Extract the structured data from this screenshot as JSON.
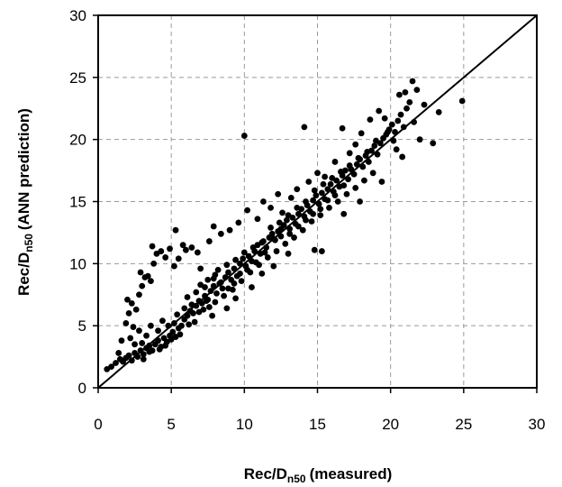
{
  "chart_data": {
    "type": "scatter",
    "title": "",
    "xlabel_main": "Rec/D",
    "xlabel_sub": "n50",
    "xlabel_suffix": "(measured)",
    "ylabel_main": "Rec/D",
    "ylabel_sub": "n50",
    "ylabel_suffix": "(ANN prediction)",
    "xlim": [
      0,
      30
    ],
    "ylim": [
      0,
      30
    ],
    "x_ticks": [
      "0",
      "5",
      "10",
      "15",
      "20",
      "25",
      "30"
    ],
    "y_ticks": [
      "0",
      "5",
      "10",
      "15",
      "20",
      "25",
      "30"
    ],
    "grid": true,
    "grid_style": "dashed",
    "reference_line": {
      "from": [
        0,
        0
      ],
      "to": [
        30,
        30
      ]
    },
    "colors": {
      "points": "#000000",
      "grid": "#9a9a9a",
      "line": "#000000"
    },
    "points": [
      [
        0.6,
        1.5
      ],
      [
        0.9,
        1.7
      ],
      [
        1.2,
        2.0
      ],
      [
        1.5,
        2.3
      ],
      [
        1.4,
        2.8
      ],
      [
        1.7,
        2.1
      ],
      [
        1.9,
        2.4
      ],
      [
        2.1,
        2.6
      ],
      [
        2.3,
        2.2
      ],
      [
        2.5,
        2.8
      ],
      [
        2.7,
        2.5
      ],
      [
        2.9,
        3.0
      ],
      [
        3.1,
        2.7
      ],
      [
        3.3,
        3.2
      ],
      [
        3.5,
        3.4
      ],
      [
        3.0,
        3.6
      ],
      [
        3.7,
        3.0
      ],
      [
        3.9,
        3.5
      ],
      [
        4.1,
        3.8
      ],
      [
        4.3,
        3.3
      ],
      [
        4.5,
        4.0
      ],
      [
        4.7,
        3.7
      ],
      [
        4.9,
        4.2
      ],
      [
        5.1,
        4.5
      ],
      [
        5.3,
        4.1
      ],
      [
        5.5,
        4.8
      ],
      [
        5.2,
        5.2
      ],
      [
        5.7,
        5.0
      ],
      [
        5.9,
        5.5
      ],
      [
        6.1,
        5.8
      ],
      [
        6.3,
        6.2
      ],
      [
        6.5,
        6.0
      ],
      [
        6.7,
        6.6
      ],
      [
        6.9,
        7.0
      ],
      [
        7.1,
        6.8
      ],
      [
        7.3,
        7.4
      ],
      [
        7.5,
        7.1
      ],
      [
        7.7,
        7.8
      ],
      [
        7.9,
        8.2
      ],
      [
        8.1,
        7.6
      ],
      [
        8.3,
        8.4
      ],
      [
        8.5,
        8.0
      ],
      [
        8.7,
        8.9
      ],
      [
        8.9,
        9.3
      ],
      [
        9.1,
        8.7
      ],
      [
        9.3,
        9.6
      ],
      [
        9.5,
        9.0
      ],
      [
        9.7,
        10.0
      ],
      [
        9.9,
        10.4
      ],
      [
        10.1,
        9.8
      ],
      [
        10.3,
        10.6
      ],
      [
        10.5,
        10.2
      ],
      [
        10.7,
        11.0
      ],
      [
        10.9,
        11.5
      ],
      [
        11.1,
        10.8
      ],
      [
        11.3,
        11.8
      ],
      [
        11.5,
        11.3
      ],
      [
        11.7,
        12.1
      ],
      [
        11.9,
        12.4
      ],
      [
        12.1,
        11.9
      ],
      [
        12.3,
        12.6
      ],
      [
        12.5,
        12.2
      ],
      [
        12.7,
        13.1
      ],
      [
        12.9,
        13.5
      ],
      [
        13.1,
        12.8
      ],
      [
        13.3,
        13.7
      ],
      [
        13.5,
        13.2
      ],
      [
        13.7,
        14.0
      ],
      [
        13.9,
        14.4
      ],
      [
        14.1,
        13.8
      ],
      [
        14.3,
        14.7
      ],
      [
        14.5,
        14.2
      ],
      [
        14.7,
        15.1
      ],
      [
        14.9,
        15.5
      ],
      [
        15.1,
        14.8
      ],
      [
        15.3,
        15.7
      ],
      [
        15.5,
        15.2
      ],
      [
        15.7,
        16.0
      ],
      [
        15.9,
        16.4
      ],
      [
        16.1,
        15.8
      ],
      [
        16.3,
        16.7
      ],
      [
        16.5,
        16.2
      ],
      [
        16.7,
        17.1
      ],
      [
        16.9,
        17.5
      ],
      [
        17.1,
        16.8
      ],
      [
        17.3,
        17.6
      ],
      [
        17.5,
        17.2
      ],
      [
        17.7,
        18.0
      ],
      [
        17.9,
        18.4
      ],
      [
        18.1,
        17.8
      ],
      [
        18.3,
        18.7
      ],
      [
        18.5,
        18.2
      ],
      [
        18.7,
        19.1
      ],
      [
        18.9,
        19.5
      ],
      [
        19.1,
        18.8
      ],
      [
        19.3,
        19.7
      ],
      [
        19.5,
        20.1
      ],
      [
        19.7,
        20.4
      ],
      [
        19.9,
        20.8
      ],
      [
        20.1,
        21.2
      ],
      [
        20.3,
        20.6
      ],
      [
        20.5,
        21.5
      ],
      [
        20.7,
        22.0
      ],
      [
        20.9,
        21.0
      ],
      [
        21.1,
        22.5
      ],
      [
        21.3,
        23.0
      ],
      [
        21.5,
        24.7
      ],
      [
        21.0,
        23.8
      ],
      [
        20.6,
        23.6
      ],
      [
        21.8,
        24.0
      ],
      [
        22.3,
        22.8
      ],
      [
        22.0,
        20.0
      ],
      [
        21.6,
        21.4
      ],
      [
        20.4,
        19.2
      ],
      [
        20.8,
        18.6
      ],
      [
        22.9,
        19.7
      ],
      [
        23.3,
        22.2
      ],
      [
        24.9,
        23.1
      ],
      [
        20.2,
        19.9
      ],
      [
        19.6,
        21.7
      ],
      [
        1.9,
        5.2
      ],
      [
        2.1,
        6.0
      ],
      [
        2.3,
        6.8
      ],
      [
        2.0,
        7.1
      ],
      [
        2.6,
        6.3
      ],
      [
        2.8,
        7.5
      ],
      [
        3.0,
        8.2
      ],
      [
        3.2,
        8.9
      ],
      [
        2.9,
        9.3
      ],
      [
        3.4,
        9.0
      ],
      [
        3.6,
        8.6
      ],
      [
        3.8,
        10.0
      ],
      [
        4.0,
        10.8
      ],
      [
        4.3,
        11.0
      ],
      [
        3.7,
        11.4
      ],
      [
        4.6,
        10.5
      ],
      [
        4.9,
        11.2
      ],
      [
        5.2,
        9.8
      ],
      [
        5.5,
        10.4
      ],
      [
        5.3,
        12.7
      ],
      [
        5.8,
        11.5
      ],
      [
        6.0,
        11.1
      ],
      [
        6.4,
        11.3
      ],
      [
        6.8,
        10.9
      ],
      [
        7.0,
        9.6
      ],
      [
        7.6,
        11.8
      ],
      [
        7.9,
        13.0
      ],
      [
        8.4,
        12.4
      ],
      [
        9.0,
        12.7
      ],
      [
        9.6,
        13.3
      ],
      [
        10.0,
        20.3
      ],
      [
        10.2,
        14.3
      ],
      [
        10.9,
        13.6
      ],
      [
        11.3,
        15.0
      ],
      [
        11.8,
        14.5
      ],
      [
        12.3,
        15.6
      ],
      [
        12.6,
        14.1
      ],
      [
        13.2,
        15.3
      ],
      [
        13.6,
        16.0
      ],
      [
        14.1,
        21.0
      ],
      [
        14.4,
        16.6
      ],
      [
        15.0,
        17.3
      ],
      [
        15.5,
        17.0
      ],
      [
        16.2,
        18.2
      ],
      [
        16.7,
        20.9
      ],
      [
        17.2,
        18.9
      ],
      [
        17.6,
        19.6
      ],
      [
        18.0,
        20.5
      ],
      [
        18.6,
        21.6
      ],
      [
        19.2,
        22.3
      ],
      [
        2.2,
        4.0
      ],
      [
        2.5,
        3.5
      ],
      [
        2.8,
        4.6
      ],
      [
        3.3,
        4.2
      ],
      [
        3.6,
        5.0
      ],
      [
        4.1,
        4.6
      ],
      [
        4.4,
        5.4
      ],
      [
        4.8,
        5.0
      ],
      [
        1.6,
        3.8
      ],
      [
        2.4,
        4.9
      ],
      [
        3.1,
        2.3
      ],
      [
        3.5,
        2.9
      ],
      [
        4.2,
        3.1
      ],
      [
        4.6,
        3.4
      ],
      [
        5.0,
        3.9
      ],
      [
        5.6,
        4.3
      ],
      [
        6.2,
        5.1
      ],
      [
        6.6,
        5.3
      ],
      [
        7.2,
        6.3
      ],
      [
        7.6,
        6.5
      ],
      [
        8.0,
        6.9
      ],
      [
        8.6,
        7.4
      ],
      [
        9.2,
        7.9
      ],
      [
        9.8,
        8.6
      ],
      [
        10.4,
        9.3
      ],
      [
        11.0,
        9.9
      ],
      [
        11.6,
        10.5
      ],
      [
        12.2,
        11.0
      ],
      [
        12.8,
        11.6
      ],
      [
        13.4,
        12.1
      ],
      [
        14.0,
        12.7
      ],
      [
        14.6,
        13.4
      ],
      [
        15.2,
        13.9
      ],
      [
        15.8,
        14.5
      ],
      [
        16.4,
        15.0
      ],
      [
        17.0,
        15.6
      ],
      [
        17.6,
        16.1
      ],
      [
        18.2,
        16.7
      ],
      [
        18.8,
        17.3
      ],
      [
        19.4,
        16.6
      ],
      [
        14.8,
        11.1
      ],
      [
        15.3,
        11.0
      ],
      [
        16.8,
        14.0
      ],
      [
        17.9,
        15.0
      ],
      [
        13.0,
        10.8
      ],
      [
        12.0,
        9.8
      ],
      [
        11.2,
        9.2
      ],
      [
        10.5,
        8.1
      ],
      [
        9.4,
        7.2
      ],
      [
        8.8,
        6.4
      ],
      [
        7.8,
        5.8
      ],
      [
        7.4,
        7.0
      ],
      [
        6.9,
        6.1
      ],
      [
        6.4,
        6.7
      ],
      [
        5.9,
        6.4
      ],
      [
        5.4,
        5.9
      ],
      [
        6.1,
        7.3
      ],
      [
        6.7,
        7.7
      ],
      [
        7.3,
        8.1
      ],
      [
        7.9,
        8.8
      ],
      [
        8.2,
        9.5
      ],
      [
        8.8,
        9.9
      ],
      [
        9.4,
        10.3
      ],
      [
        10.0,
        10.9
      ],
      [
        10.6,
        11.3
      ],
      [
        11.2,
        11.7
      ],
      [
        11.8,
        12.9
      ],
      [
        12.4,
        13.3
      ],
      [
        13.0,
        13.9
      ],
      [
        13.6,
        14.5
      ],
      [
        14.2,
        15.0
      ],
      [
        14.8,
        15.9
      ],
      [
        15.4,
        16.4
      ],
      [
        16.0,
        16.9
      ],
      [
        16.6,
        17.4
      ],
      [
        17.2,
        17.9
      ],
      [
        17.8,
        18.5
      ],
      [
        18.4,
        19.0
      ],
      [
        19.0,
        19.9
      ],
      [
        19.8,
        20.6
      ],
      [
        7.0,
        8.3
      ],
      [
        7.5,
        8.7
      ],
      [
        8.0,
        9.1
      ],
      [
        8.4,
        8.5
      ],
      [
        8.9,
        8.0
      ],
      [
        9.3,
        8.4
      ],
      [
        9.7,
        9.2
      ],
      [
        10.2,
        9.5
      ],
      [
        10.8,
        10.1
      ],
      [
        11.4,
        10.9
      ],
      [
        12.0,
        12.0
      ],
      [
        12.5,
        12.8
      ],
      [
        13.1,
        12.4
      ],
      [
        13.7,
        13.0
      ],
      [
        14.2,
        13.5
      ],
      [
        14.7,
        14.0
      ],
      [
        15.2,
        14.4
      ],
      [
        15.7,
        15.1
      ],
      [
        16.2,
        15.5
      ],
      [
        16.8,
        16.3
      ]
    ]
  }
}
